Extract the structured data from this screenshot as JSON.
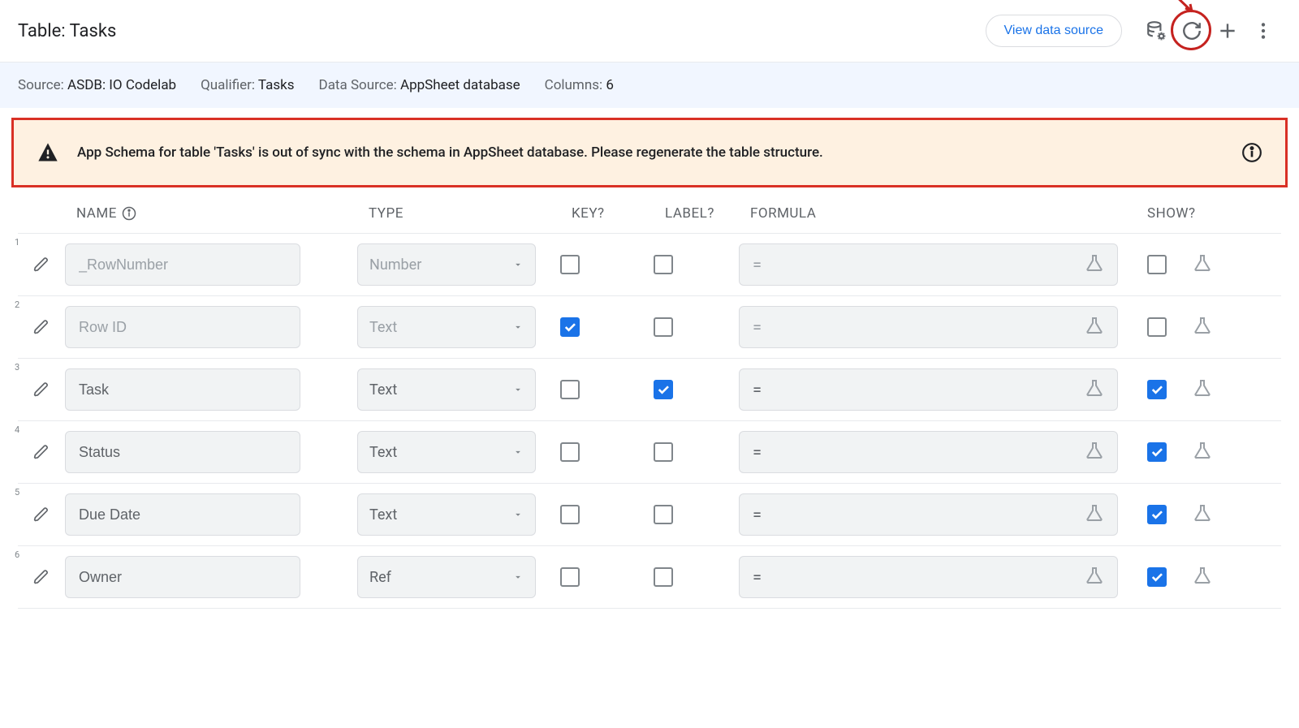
{
  "header": {
    "title": "Table: Tasks",
    "viewDataSource": "View data source"
  },
  "infoBar": {
    "sourceLabel": "Source:",
    "sourceValue": "ASDB: IO Codelab",
    "qualifierLabel": "Qualifier:",
    "qualifierValue": "Tasks",
    "dataSourceLabel": "Data Source:",
    "dataSourceValue": "AppSheet database",
    "columnsLabel": "Columns:",
    "columnsValue": "6"
  },
  "warning": {
    "text": "App Schema for table 'Tasks' is out of sync with the schema in AppSheet database. Please regenerate the table structure."
  },
  "columnsHeader": {
    "name": "NAME",
    "type": "TYPE",
    "key": "KEY?",
    "label": "LABEL?",
    "formula": "FORMULA",
    "show": "SHOW?"
  },
  "rows": [
    {
      "num": "1",
      "name": "_RowNumber",
      "type": "Number",
      "disabled": true,
      "key": false,
      "label": false,
      "formula": "=",
      "show": false
    },
    {
      "num": "2",
      "name": "Row ID",
      "type": "Text",
      "disabled": true,
      "key": true,
      "label": false,
      "formula": "=",
      "show": false
    },
    {
      "num": "3",
      "name": "Task",
      "type": "Text",
      "disabled": false,
      "key": false,
      "label": true,
      "formula": "=",
      "show": true
    },
    {
      "num": "4",
      "name": "Status",
      "type": "Text",
      "disabled": false,
      "key": false,
      "label": false,
      "formula": "=",
      "show": true
    },
    {
      "num": "5",
      "name": "Due Date",
      "type": "Text",
      "disabled": false,
      "key": false,
      "label": false,
      "formula": "=",
      "show": true
    },
    {
      "num": "6",
      "name": "Owner",
      "type": "Ref",
      "disabled": false,
      "key": false,
      "label": false,
      "formula": "=",
      "show": true
    }
  ],
  "annotation": {
    "highlightRefresh": true,
    "arrowColor": "#c5221f"
  },
  "colors": {
    "accent": "#1a73e8",
    "danger": "#d93025",
    "warningBg": "#fef1e1",
    "infoBg": "#f1f6ff",
    "inputBg": "#f1f3f4",
    "border": "#dadce0",
    "muted": "#5f6368",
    "textDisabled": "#9aa0a6"
  }
}
